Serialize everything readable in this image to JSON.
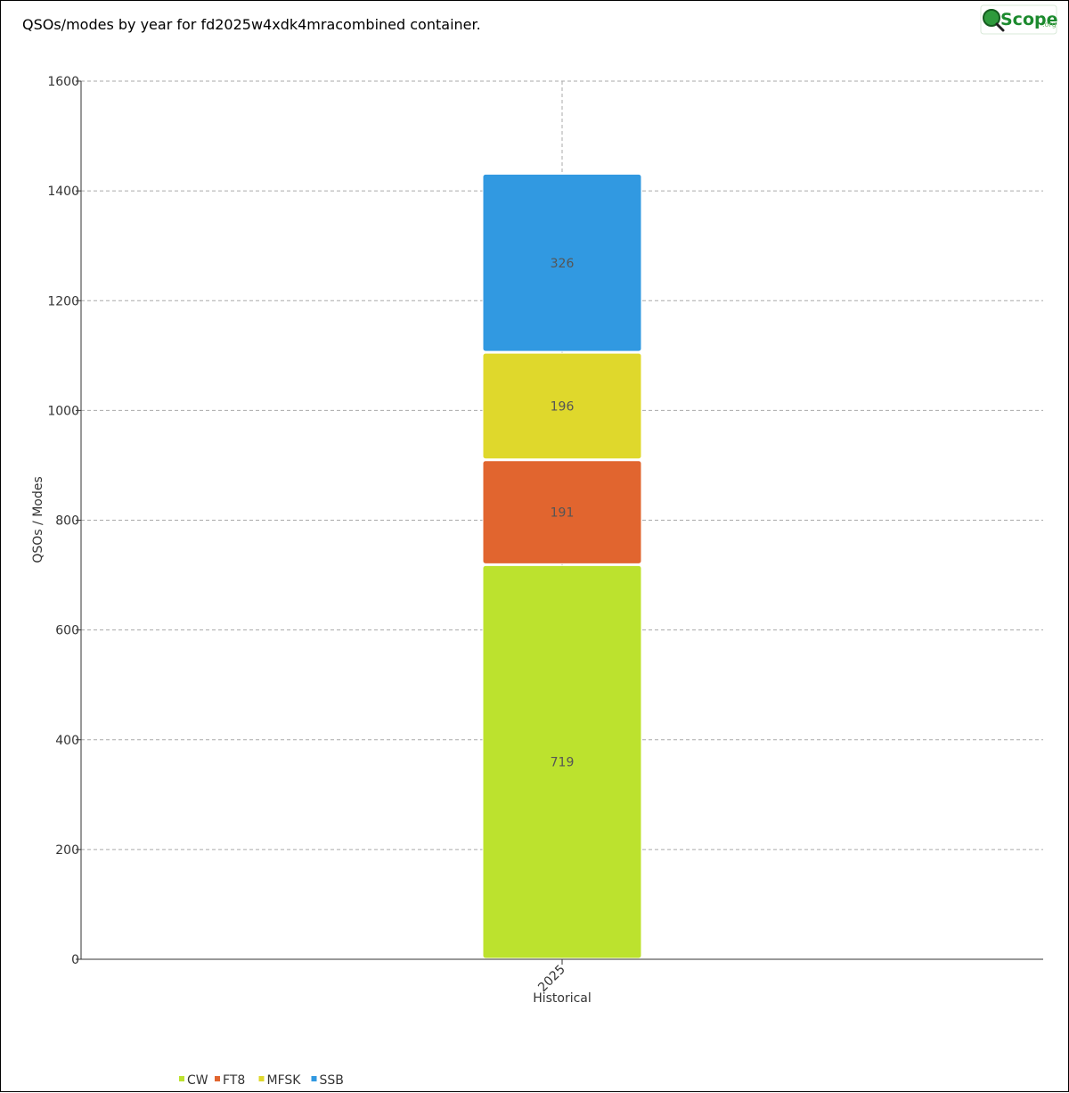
{
  "header": {
    "title": "QSOs/modes by year for fd2025w4xdk4mracombined container.",
    "logo_text": "Scope",
    "logo_letter": "Q",
    "logo_suffix": ".org"
  },
  "chart_data": {
    "type": "bar",
    "stacked": true,
    "title": "QSOs/modes by year for fd2025w4xdk4mracombined container.",
    "categories": [
      "2025"
    ],
    "xlabel": "Historical",
    "ylabel": "QSOs / Modes",
    "ylim": [
      0,
      1600
    ],
    "yticks": [
      0,
      200,
      400,
      600,
      800,
      1000,
      1200,
      1400,
      1600
    ],
    "grid": true,
    "legend_position": "bottom-left",
    "series": [
      {
        "name": "CW",
        "values": [
          719
        ],
        "color": "#bce22e"
      },
      {
        "name": "FT8",
        "values": [
          191
        ],
        "color": "#e1652f"
      },
      {
        "name": "MFSK",
        "values": [
          196
        ],
        "color": "#dfd82c"
      },
      {
        "name": "SSB",
        "values": [
          326
        ],
        "color": "#3199e1"
      }
    ]
  }
}
